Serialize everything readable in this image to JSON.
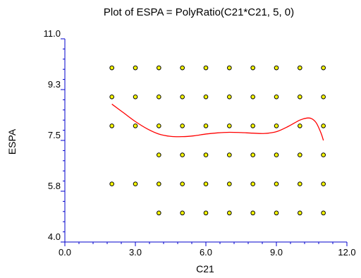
{
  "chart_data": {
    "type": "scatter",
    "title": "Plot of ESPA = PolyRatio(C21*C21, 5, 0)",
    "xlabel": "C21",
    "ylabel": "ESPA",
    "xlim": [
      0,
      12
    ],
    "ylim": [
      4,
      11
    ],
    "xticks": [
      0,
      3,
      6,
      9,
      12
    ],
    "xtick_labels": [
      "0.0",
      "3.0",
      "6.0",
      "9.0",
      "12.0"
    ],
    "yticks": [
      4.0,
      5.75,
      7.5,
      9.25,
      11.0
    ],
    "ytick_labels": [
      "4.0",
      "5.8",
      "7.5",
      "9.3",
      "11.0"
    ],
    "grid": false,
    "colors": {
      "point_fill": "#ffff00",
      "point_stroke": "#000000",
      "fit_line": "#ff0000",
      "axis": "#0000cc"
    },
    "points": [
      [
        2,
        10
      ],
      [
        3,
        10
      ],
      [
        4,
        10
      ],
      [
        5,
        10
      ],
      [
        6,
        10
      ],
      [
        7,
        10
      ],
      [
        8,
        10
      ],
      [
        9,
        10
      ],
      [
        10,
        10
      ],
      [
        11,
        10
      ],
      [
        2,
        9
      ],
      [
        3,
        9
      ],
      [
        4,
        9
      ],
      [
        5,
        9
      ],
      [
        6,
        9
      ],
      [
        7,
        9
      ],
      [
        8,
        9
      ],
      [
        9,
        9
      ],
      [
        10,
        9
      ],
      [
        11,
        9
      ],
      [
        2,
        8
      ],
      [
        3,
        8
      ],
      [
        4,
        8
      ],
      [
        5,
        8
      ],
      [
        6,
        8
      ],
      [
        7,
        8
      ],
      [
        8,
        8
      ],
      [
        9,
        8
      ],
      [
        10,
        8
      ],
      [
        11,
        8
      ],
      [
        4,
        7
      ],
      [
        5,
        7
      ],
      [
        6,
        7
      ],
      [
        7,
        7
      ],
      [
        8,
        7
      ],
      [
        9,
        7
      ],
      [
        10,
        7
      ],
      [
        11,
        7
      ],
      [
        2,
        6
      ],
      [
        3,
        6
      ],
      [
        4,
        6
      ],
      [
        5,
        6
      ],
      [
        6,
        6
      ],
      [
        7,
        6
      ],
      [
        8,
        6
      ],
      [
        9,
        6
      ],
      [
        10,
        6
      ],
      [
        11,
        6
      ],
      [
        4,
        5
      ],
      [
        5,
        5
      ],
      [
        6,
        5
      ],
      [
        7,
        5
      ],
      [
        8,
        5
      ],
      [
        9,
        5
      ],
      [
        10,
        5
      ],
      [
        11,
        5
      ]
    ],
    "fit_line": {
      "x": [
        2.0,
        2.5,
        3.0,
        3.5,
        4.0,
        4.5,
        5.0,
        5.5,
        6.0,
        6.5,
        7.0,
        7.5,
        8.0,
        8.5,
        9.0,
        9.5,
        10.0,
        10.3,
        10.5,
        10.7,
        10.9,
        11.0
      ],
      "y": [
        8.75,
        8.45,
        8.15,
        7.9,
        7.72,
        7.64,
        7.63,
        7.66,
        7.72,
        7.76,
        7.78,
        7.77,
        7.75,
        7.74,
        7.8,
        7.98,
        8.2,
        8.27,
        8.25,
        8.1,
        7.75,
        7.5
      ]
    }
  }
}
